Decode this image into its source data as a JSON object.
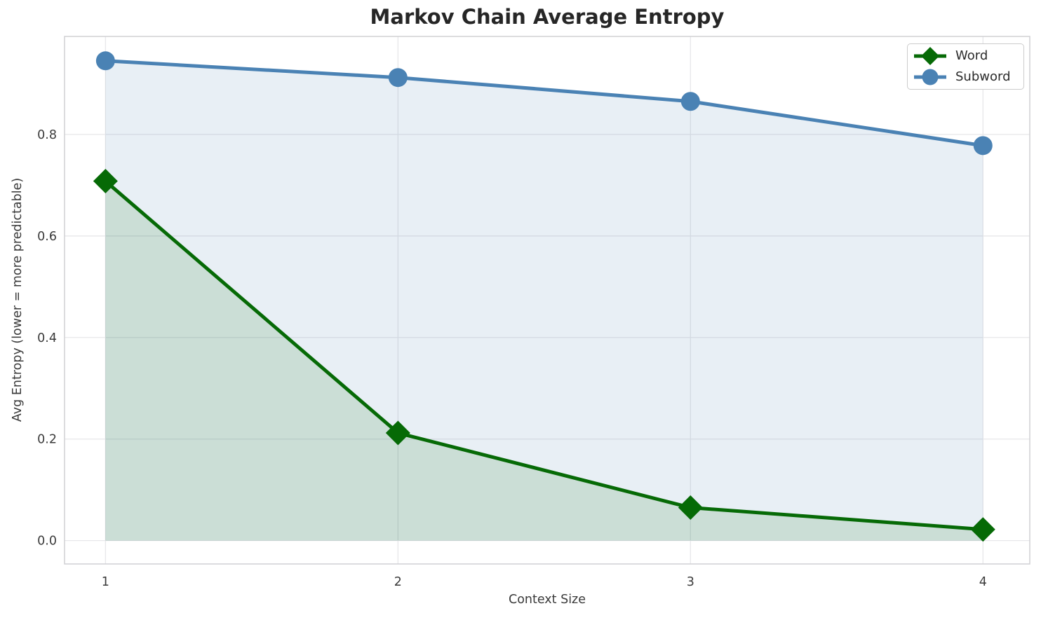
{
  "title": "Markov Chain Average Entropy",
  "chart_data": {
    "type": "line",
    "title": "Markov Chain Average Entropy",
    "xlabel": "Context Size",
    "ylabel": "Avg Entropy (lower = more predictable)",
    "x": [
      1,
      2,
      3,
      4
    ],
    "xtick_labels": [
      "1",
      "2",
      "3",
      "4"
    ],
    "yticks": [
      0.0,
      0.2,
      0.4,
      0.6,
      0.8
    ],
    "ytick_labels": [
      "0.0",
      "0.2",
      "0.4",
      "0.6",
      "0.8"
    ],
    "xlim": [
      0.86,
      4.16
    ],
    "ylim": [
      -0.046,
      0.993
    ],
    "grid": true,
    "legend_position": "upper right",
    "series": [
      {
        "name": "Word",
        "marker": "diamond",
        "color": "#066a06",
        "fill_opacity": 0.13,
        "values": [
          0.708,
          0.212,
          0.065,
          0.022
        ]
      },
      {
        "name": "Subword",
        "marker": "circle",
        "color": "#4a82b4",
        "fill_opacity": 0.13,
        "values": [
          0.945,
          0.912,
          0.865,
          0.778
        ]
      }
    ],
    "styles": {
      "grid_color": "#e7e7ea",
      "spine_color": "#d0d0d4",
      "tick_color": "#3a3a3a",
      "title_color": "#262626"
    }
  }
}
